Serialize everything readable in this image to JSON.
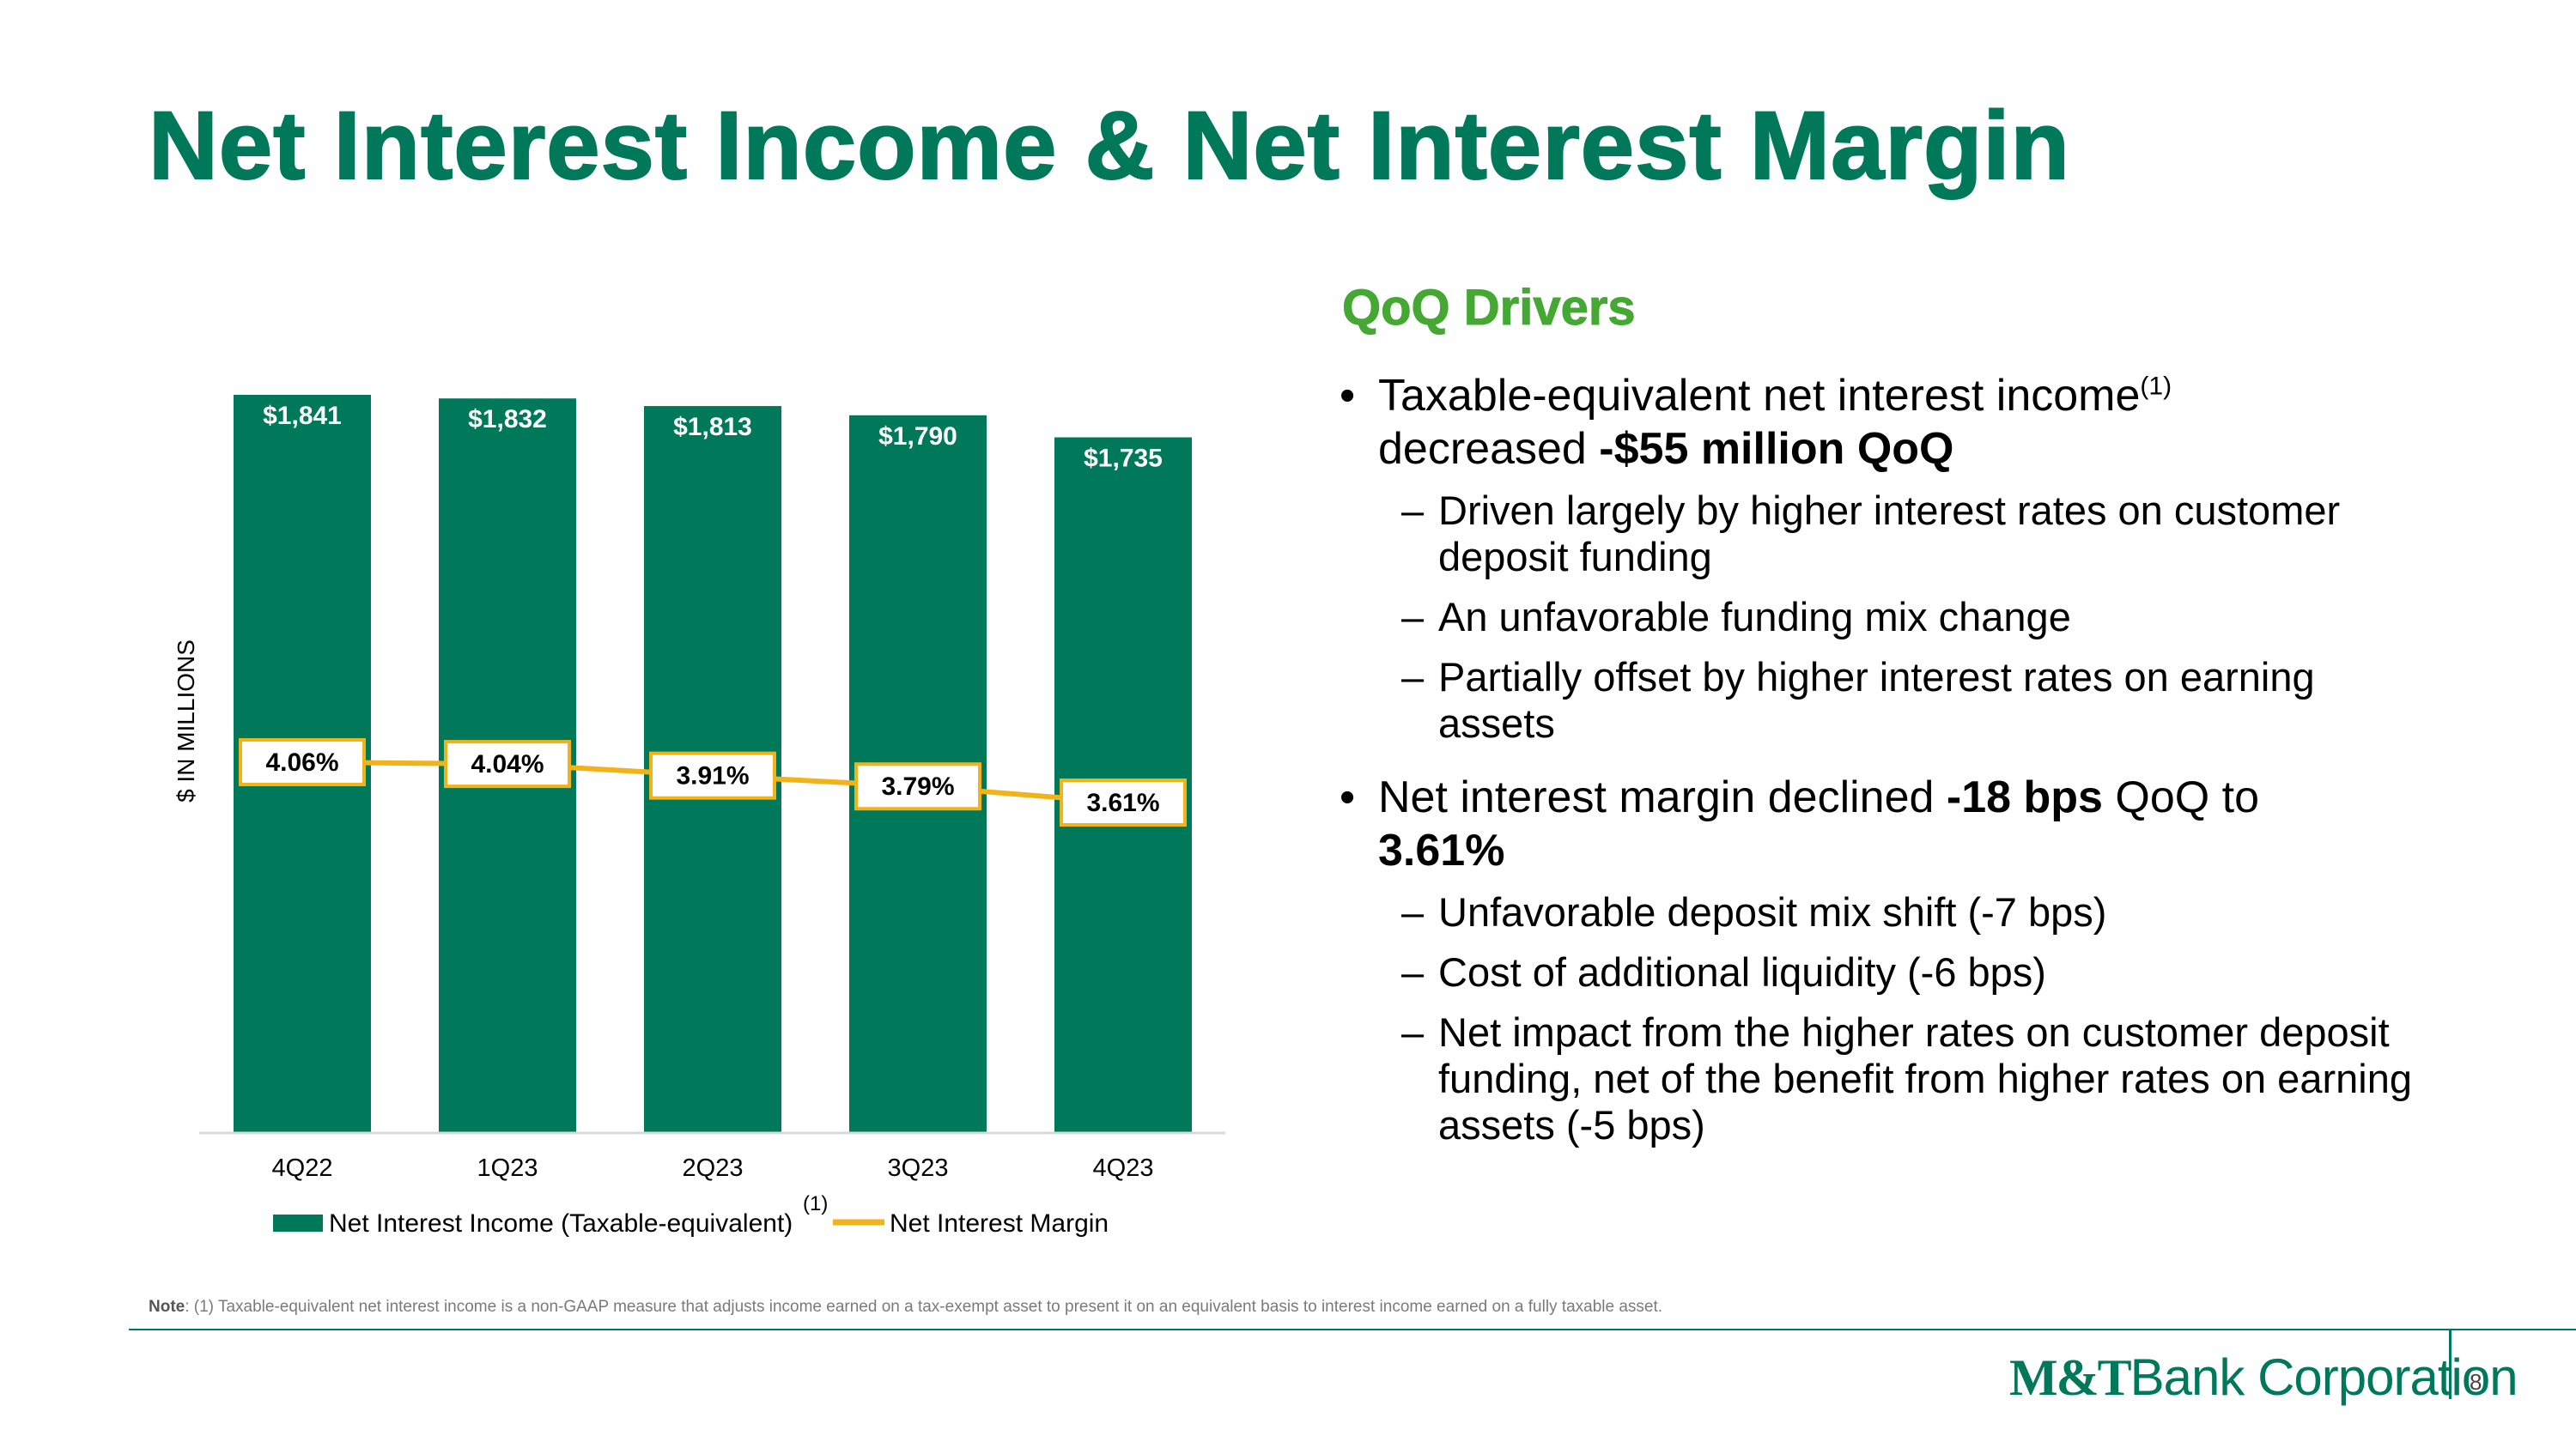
{
  "title": "Net Interest Income & Net Interest Margin",
  "chart_data": {
    "type": "bar",
    "categories": [
      "4Q22",
      "1Q23",
      "2Q23",
      "3Q23",
      "4Q23"
    ],
    "series": [
      {
        "name": "Net Interest Income (Taxable-equivalent)",
        "type": "bar",
        "values": [
          1841,
          1832,
          1813,
          1790,
          1735
        ],
        "labels": [
          "$1,841",
          "$1,832",
          "$1,813",
          "$1,790",
          "$1,735"
        ]
      },
      {
        "name": "Net Interest Margin",
        "type": "line",
        "values": [
          4.06,
          4.04,
          3.91,
          3.79,
          3.61
        ],
        "labels": [
          "4.06%",
          "4.04%",
          "3.91%",
          "3.79%",
          "3.61%"
        ]
      }
    ],
    "ylabel": "$ IN MILLIONS",
    "ylim": [
      0,
      1841
    ],
    "legend_position": "bottom",
    "legend_superscript": "(1)",
    "colors": {
      "bar": "#00785a",
      "line": "#f2b31a",
      "label_box": "#f2b31a"
    }
  },
  "drivers": {
    "heading": "QoQ Drivers",
    "bullet1": {
      "text": "Taxable-equivalent net interest income",
      "superscript": "(1)",
      "text2": "decreased ",
      "bold": "-$55 million QoQ",
      "subs": [
        "Driven largely by higher interest rates on customer deposit funding",
        "An unfavorable funding mix change",
        "Partially offset by higher interest rates on earning assets"
      ]
    },
    "bullet2": {
      "text": "Net interest margin declined ",
      "bold": "-18 bps",
      "text2": " QoQ to ",
      "bold2": "3.61%",
      "subs": [
        "Unfavorable deposit mix shift (-7 bps)",
        "Cost of additional liquidity (-6 bps)",
        "Net impact from the higher rates on customer deposit funding, net of the benefit from higher rates on earning assets (-5 bps)"
      ]
    }
  },
  "note": {
    "label": "Note",
    "text": ": (1) Taxable-equivalent net interest income is a non-GAAP measure that adjusts income earned on a tax-exempt asset to present it on an equivalent basis to interest income earned on a fully taxable asset."
  },
  "footer": {
    "logo_mt": "M&T",
    "logo_rest": "Bank Corporation",
    "page_number": "8"
  }
}
